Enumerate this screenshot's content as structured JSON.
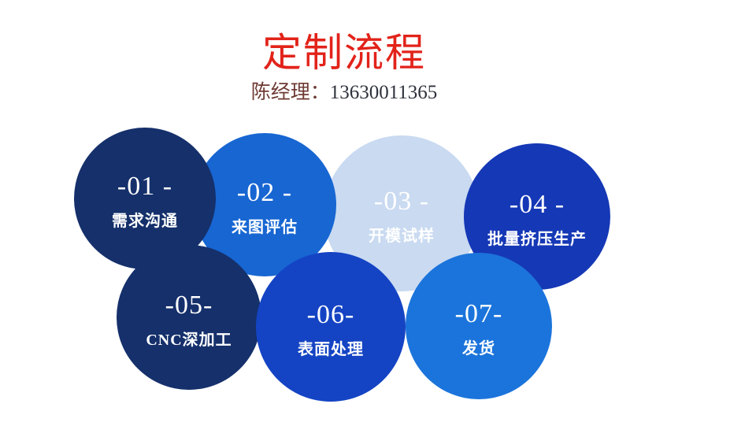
{
  "page": {
    "background_color": "#ffffff"
  },
  "header": {
    "title": "定制流程",
    "title_color": "#e2231a",
    "contact_name": "陈经理：",
    "contact_phone": "13630011365",
    "contact_name_color": "#6e3a33",
    "contact_phone_color": "#2e323c"
  },
  "steps": [
    {
      "num": "-01 -",
      "label": "需求沟通",
      "color": "#15306b",
      "text_color": "#ffffff"
    },
    {
      "num": "-02 -",
      "label": "来图评估",
      "color": "#1766d2",
      "text_color": "#ffffff"
    },
    {
      "num": "-03 -",
      "label": "开模试样",
      "color": "#c9daf1",
      "text_color": "#ffffff"
    },
    {
      "num": "-04 -",
      "label": "批量挤压生产",
      "color": "#1538b6",
      "text_color": "#ffffff"
    },
    {
      "num": "-05-",
      "label": "CNC深加工",
      "color": "#15306b",
      "text_color": "#ffffff"
    },
    {
      "num": "-06-",
      "label": "表面处理",
      "color": "#1444c4",
      "text_color": "#ffffff"
    },
    {
      "num": "-07-",
      "label": "发货",
      "color": "#1b74db",
      "text_color": "#ffffff"
    }
  ]
}
